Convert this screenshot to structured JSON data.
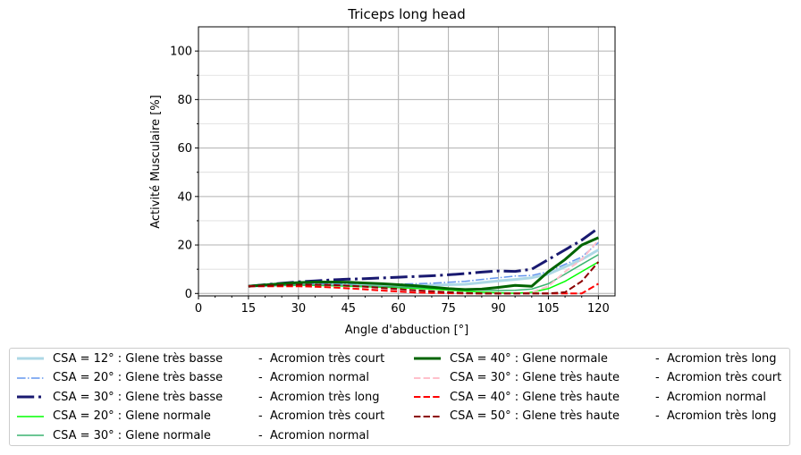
{
  "chart_data": {
    "type": "line",
    "title": "Triceps long head",
    "xlabel": "Angle d'abduction [°]",
    "ylabel": "Activité Musculaire [%]",
    "xlim": [
      0,
      125
    ],
    "ylim": [
      -1,
      110
    ],
    "xticks": [
      0,
      15,
      30,
      45,
      60,
      75,
      90,
      105,
      120
    ],
    "yticks": [
      0,
      20,
      40,
      60,
      80,
      100
    ],
    "grid": true,
    "legend_position": "below",
    "x": [
      15,
      20,
      25,
      30,
      35,
      40,
      45,
      50,
      55,
      60,
      65,
      70,
      75,
      80,
      85,
      90,
      95,
      100,
      105,
      110,
      115,
      120
    ],
    "series": [
      {
        "name": "CSA = 12° : Glene très basse",
        "suffix": "-  Acromion très court",
        "color": "#add8e6",
        "dash": "solid",
        "width": 3,
        "values": [
          3,
          3.2,
          3.4,
          3.6,
          3.6,
          3.6,
          3.5,
          3.4,
          3.4,
          3.3,
          3.3,
          3.4,
          3.6,
          3.8,
          4.5,
          5.2,
          5.8,
          6.5,
          8,
          11,
          14,
          18
        ]
      },
      {
        "name": "CSA = 20° : Glene très basse",
        "suffix": "-  Acromion normal",
        "color": "#6495ed",
        "dash": "dashdot",
        "width": 1.5,
        "values": [
          3,
          3.3,
          3.6,
          3.9,
          4,
          4,
          4,
          4,
          3.9,
          3.9,
          4,
          4.2,
          4.6,
          5,
          5.8,
          6.5,
          7.2,
          7.4,
          9,
          12,
          15,
          21
        ]
      },
      {
        "name": "CSA = 30° : Glene très basse",
        "suffix": "-  Acromion très long",
        "color": "#191970",
        "dash": "dashdot",
        "width": 3,
        "values": [
          3,
          3.6,
          4.2,
          4.8,
          5.2,
          5.6,
          5.9,
          6.1,
          6.4,
          6.7,
          7,
          7.3,
          7.7,
          8.2,
          8.8,
          9.3,
          9.1,
          10,
          14,
          18,
          22,
          27
        ]
      },
      {
        "name": "CSA = 20° : Glene normale",
        "suffix": "-  Acromion très court",
        "color": "#00ff00",
        "dash": "solid",
        "width": 1.5,
        "values": [
          3,
          3.2,
          3.3,
          3.4,
          3.3,
          3.2,
          3,
          2.8,
          2.6,
          2.4,
          2.1,
          1.8,
          1.4,
          1,
          0.6,
          0.3,
          0.1,
          0.5,
          2,
          5,
          9,
          13
        ]
      },
      {
        "name": "CSA = 30° : Glene normale",
        "suffix": "-  Acromion normal",
        "color": "#3cb371",
        "dash": "solid",
        "width": 1.5,
        "values": [
          3,
          3.2,
          3.4,
          3.5,
          3.5,
          3.4,
          3.3,
          3.1,
          2.9,
          2.7,
          2.5,
          2.2,
          2,
          1.7,
          1.4,
          1.2,
          1.3,
          1.8,
          4,
          8,
          12,
          16
        ]
      },
      {
        "name": "CSA = 40° : Glene normale",
        "suffix": "-  Acromion très long",
        "color": "#006400",
        "dash": "solid",
        "width": 3,
        "values": [
          3,
          3.5,
          4,
          4.5,
          4.7,
          4.7,
          4.6,
          4.3,
          4,
          3.6,
          3.2,
          2.6,
          2,
          1.6,
          1.8,
          2.5,
          3.3,
          3,
          9,
          14,
          20,
          23
        ]
      },
      {
        "name": "CSA = 30° : Glene très haute",
        "suffix": "-  Acromion très court",
        "color": "#ffc0cb",
        "dash": "dashed",
        "width": 2,
        "values": [
          3,
          3,
          3,
          3,
          2.8,
          2.6,
          2.3,
          2,
          1.6,
          1.2,
          0.8,
          0.5,
          0.3,
          0.1,
          0,
          0,
          0,
          0.5,
          3,
          9,
          14,
          22
        ]
      },
      {
        "name": "CSA = 40° : Glene très haute",
        "suffix": "-  Acromion normal",
        "color": "#ff0000",
        "dash": "dashed",
        "width": 2,
        "values": [
          3,
          3,
          3,
          3,
          2.8,
          2.5,
          2.1,
          1.7,
          1.2,
          0.8,
          0.4,
          0.2,
          0.1,
          0,
          0,
          0,
          0,
          0,
          0,
          0,
          0,
          4
        ]
      },
      {
        "name": "CSA = 50° : Glene très haute",
        "suffix": "-  Acromion très long",
        "color": "#8b0000",
        "dash": "dashed",
        "width": 2,
        "values": [
          3,
          3.2,
          3.4,
          3.6,
          3.6,
          3.5,
          3.2,
          2.8,
          2.3,
          1.8,
          1.3,
          0.9,
          0.5,
          0.2,
          0,
          0,
          0,
          0,
          0,
          0.5,
          5,
          13
        ]
      }
    ]
  }
}
